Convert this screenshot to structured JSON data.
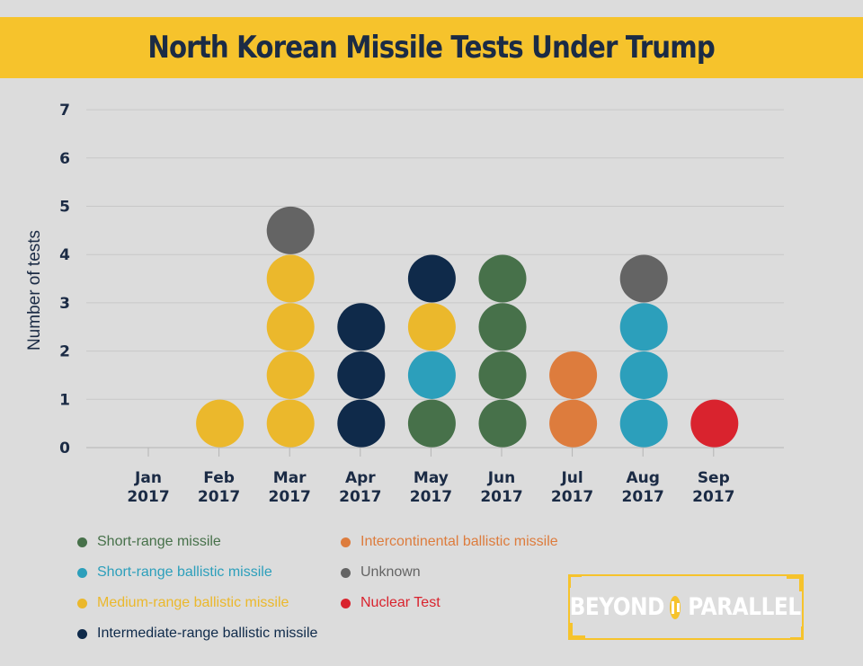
{
  "title": "North Korean Missile Tests Under Trump",
  "chart_data": {
    "type": "scatter",
    "title": "North Korean Missile Tests Under Trump",
    "ylabel": "Number of tests",
    "ylim": [
      0,
      7
    ],
    "yticks": [
      "0",
      "1",
      "2",
      "3",
      "4",
      "5",
      "6",
      "7"
    ],
    "grid": true,
    "months": [
      {
        "label_top": "Jan",
        "label_bottom": "2017",
        "tests": []
      },
      {
        "label_top": "Feb",
        "label_bottom": "2017",
        "tests": [
          "Medium-range ballistic missile"
        ]
      },
      {
        "label_top": "Mar",
        "label_bottom": "2017",
        "tests": [
          "Medium-range ballistic missile",
          "Medium-range ballistic missile",
          "Medium-range ballistic missile",
          "Medium-range ballistic missile",
          "Unknown"
        ]
      },
      {
        "label_top": "Apr",
        "label_bottom": "2017",
        "tests": [
          "Intermediate-range ballistic missile",
          "Intermediate-range ballistic missile",
          "Intermediate-range ballistic missile"
        ]
      },
      {
        "label_top": "May",
        "label_bottom": "2017",
        "tests": [
          "Short-range missile",
          "Short-range ballistic missile",
          "Medium-range ballistic missile",
          "Intermediate-range ballistic missile"
        ]
      },
      {
        "label_top": "Jun",
        "label_bottom": "2017",
        "tests": [
          "Short-range missile",
          "Short-range missile",
          "Short-range missile",
          "Short-range missile"
        ]
      },
      {
        "label_top": "Jul",
        "label_bottom": "2017",
        "tests": [
          "Intercontinental ballistic missile",
          "Intercontinental ballistic missile"
        ]
      },
      {
        "label_top": "Aug",
        "label_bottom": "2017",
        "tests": [
          "Short-range ballistic missile",
          "Short-range ballistic missile",
          "Short-range ballistic missile",
          "Unknown"
        ]
      },
      {
        "label_top": "Sep",
        "label_bottom": "2017",
        "tests": [
          "Nuclear Test"
        ]
      }
    ],
    "categories": [
      {
        "name": "Short-range missile",
        "color": "#47714a"
      },
      {
        "name": "Short-range ballistic missile",
        "color": "#2c9fbb"
      },
      {
        "name": "Medium-range ballistic missile",
        "color": "#ebb82c"
      },
      {
        "name": "Intermediate-range ballistic missile",
        "color": "#0f2a4a"
      },
      {
        "name": "Intercontinental ballistic missile",
        "color": "#dd7c3d"
      },
      {
        "name": "Unknown",
        "color": "#646464"
      },
      {
        "name": "Nuclear Test",
        "color": "#d9232e"
      }
    ]
  },
  "legend": [
    {
      "label": "Short-range missile",
      "color": "#47714a"
    },
    {
      "label": "Short-range ballistic missile",
      "color": "#2c9fbb"
    },
    {
      "label": "Medium-range ballistic missile",
      "color": "#ebb82c"
    },
    {
      "label": "Intermediate-range ballistic missile",
      "color": "#0f2a4a"
    },
    {
      "label": "Intercontinental ballistic missile",
      "color": "#dd7c3d"
    },
    {
      "label": "Unknown",
      "color": "#646464"
    },
    {
      "label": "Nuclear Test",
      "color": "#d9232e"
    }
  ],
  "logo": {
    "left": "BEYOND",
    "right": "PARALLEL"
  },
  "colors": {
    "accent": "#f6c32c",
    "title_text": "#1b2b45"
  }
}
